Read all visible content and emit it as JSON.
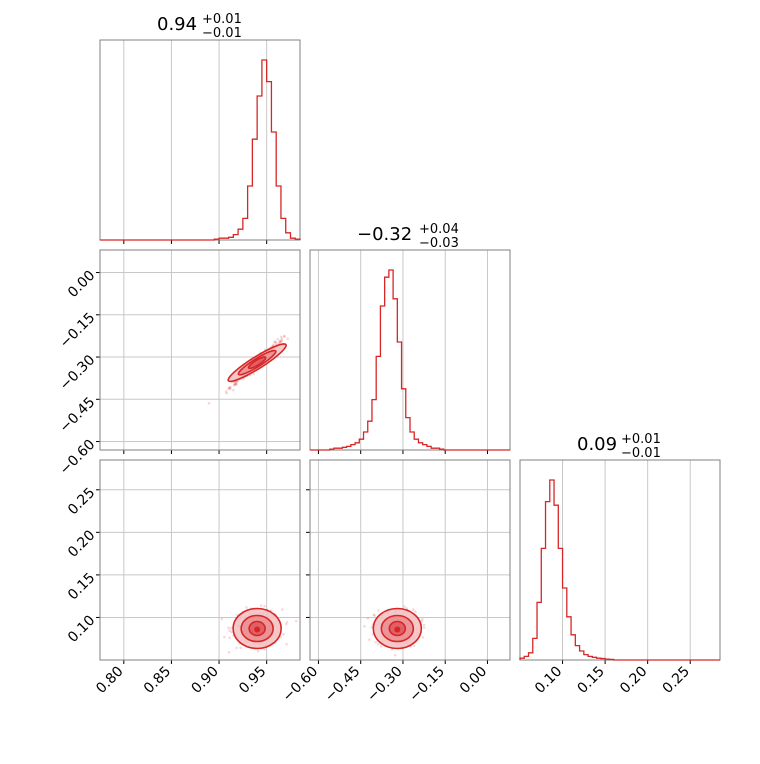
{
  "params": [
    {
      "title": {
        "main": "0.94",
        "upper": "+0.01",
        "lower": "−0.01"
      }
    },
    {
      "title": {
        "main": "−0.32",
        "upper": "+0.04",
        "lower": "−0.03"
      }
    },
    {
      "title": {
        "main": "0.09",
        "upper": "+0.01",
        "lower": "−0.01"
      }
    }
  ],
  "axes": {
    "p0": {
      "range": [
        0.775,
        0.985
      ],
      "ticks": [
        0.8,
        0.85,
        0.9,
        0.95
      ],
      "tick_labels": [
        "0.80",
        "0.85",
        "0.90",
        "0.95"
      ]
    },
    "p1": {
      "range": [
        -0.63,
        0.08
      ],
      "ticks": [
        -0.6,
        -0.45,
        -0.3,
        -0.15,
        0.0
      ],
      "tick_labels": [
        "−0.60",
        "−0.45",
        "−0.30",
        "−0.15",
        "0.00"
      ]
    },
    "p2": {
      "range": [
        0.05,
        0.285
      ],
      "ticks": [
        0.1,
        0.15,
        0.2,
        0.25
      ],
      "tick_labels": [
        "0.10",
        "0.15",
        "0.20",
        "0.25"
      ]
    }
  },
  "chart_data": [
    {
      "type": "histogram",
      "panel": "marginal-p0",
      "title": "0.94 +0.01 −0.01",
      "bin_width": 0.005,
      "bins": [
        0.895,
        0.9,
        0.905,
        0.91,
        0.915,
        0.92,
        0.925,
        0.93,
        0.935,
        0.94,
        0.945,
        0.95,
        0.955,
        0.96,
        0.965,
        0.97,
        0.975,
        0.98
      ],
      "values": [
        0.005,
        0.01,
        0.01,
        0.015,
        0.03,
        0.06,
        0.12,
        0.3,
        0.56,
        0.8,
        1.0,
        0.88,
        0.6,
        0.3,
        0.12,
        0.04,
        0.01,
        0.005
      ],
      "grid": true
    },
    {
      "type": "histogram",
      "panel": "marginal-p1",
      "title": "−0.32 +0.04 −0.03",
      "bin_width": 0.015,
      "bins": [
        -0.56,
        -0.545,
        -0.53,
        -0.515,
        -0.5,
        -0.485,
        -0.47,
        -0.455,
        -0.44,
        -0.425,
        -0.41,
        -0.395,
        -0.38,
        -0.365,
        -0.35,
        -0.335,
        -0.32,
        -0.305,
        -0.29,
        -0.275,
        -0.26,
        -0.245,
        -0.23,
        -0.215,
        -0.2,
        -0.185,
        -0.17
      ],
      "values": [
        0.005,
        0.01,
        0.01,
        0.015,
        0.02,
        0.03,
        0.04,
        0.06,
        0.1,
        0.16,
        0.28,
        0.52,
        0.8,
        0.96,
        1.0,
        0.84,
        0.6,
        0.34,
        0.18,
        0.1,
        0.06,
        0.04,
        0.03,
        0.02,
        0.01,
        0.01,
        0.005
      ],
      "grid": true
    },
    {
      "type": "histogram",
      "panel": "marginal-p2",
      "title": "0.09 +0.01 −0.01",
      "bin_width": 0.005,
      "bins": [
        0.05,
        0.055,
        0.06,
        0.065,
        0.07,
        0.075,
        0.08,
        0.085,
        0.09,
        0.095,
        0.1,
        0.105,
        0.11,
        0.115,
        0.12,
        0.125,
        0.13,
        0.135,
        0.14,
        0.145,
        0.15,
        0.155
      ],
      "values": [
        0.01,
        0.02,
        0.04,
        0.12,
        0.32,
        0.62,
        0.88,
        1.0,
        0.86,
        0.62,
        0.4,
        0.24,
        0.14,
        0.08,
        0.05,
        0.03,
        0.02,
        0.015,
        0.01,
        0.008,
        0.005,
        0.003
      ],
      "grid": true
    },
    {
      "type": "scatter",
      "panel": "joint-p0-p1",
      "x_param": "p0",
      "y_param": "p1",
      "contour_center": [
        0.94,
        -0.32
      ],
      "correlation": "strong positive",
      "grid": true
    },
    {
      "type": "scatter",
      "panel": "joint-p0-p2",
      "x_param": "p0",
      "y_param": "p2",
      "contour_center": [
        0.94,
        0.087
      ],
      "grid": true
    },
    {
      "type": "scatter",
      "panel": "joint-p1-p2",
      "x_param": "p1",
      "y_param": "p2",
      "contour_center": [
        -0.32,
        0.087
      ],
      "grid": true
    }
  ],
  "colors": {
    "series": "#d62728",
    "frame": "#808080",
    "grid": "#c8c8c8"
  }
}
